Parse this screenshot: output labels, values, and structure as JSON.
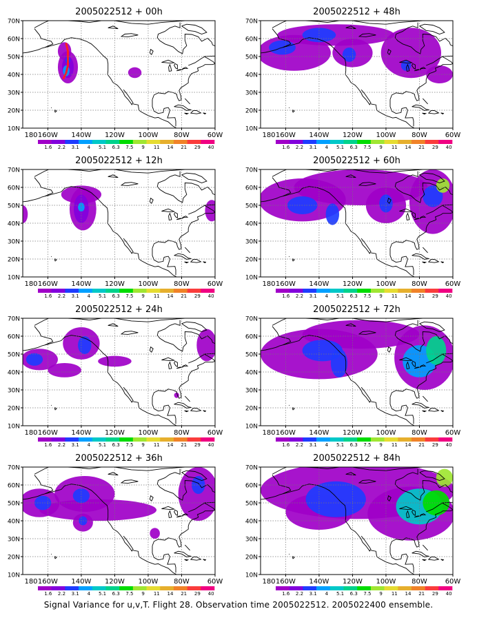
{
  "figure": {
    "caption": "Signal Variance for u,v,T. Flight 28. Observation time 2005022512. 2005022400 ensemble."
  },
  "axes": {
    "x_ticks": [
      "180",
      "160W",
      "140W",
      "120W",
      "100W",
      "80W",
      "60W"
    ],
    "y_ticks": [
      "10N",
      "20N",
      "30N",
      "40N",
      "50N",
      "60N",
      "70N"
    ],
    "lon_range": [
      -175,
      -60
    ],
    "lat_range": [
      10,
      70
    ]
  },
  "colorbar": {
    "labels": [
      "1.6",
      "2.2",
      "3.1",
      "4",
      "5.1",
      "6.3",
      "7.5",
      "9",
      "11",
      "14",
      "21",
      "29",
      "40"
    ],
    "colors": [
      "#a000c8",
      "#8200dc",
      "#1e3cff",
      "#00a0ff",
      "#00c8c8",
      "#00d28c",
      "#00dc00",
      "#a0e632",
      "#e6dc32",
      "#e6af2d",
      "#f08228",
      "#fa3c3c",
      "#f00082"
    ]
  },
  "panels": [
    {
      "title": "2005022512 + 00h",
      "blobs": [
        {
          "lon": -148,
          "lat": 44,
          "rx": 6,
          "ry": 9,
          "level": 0
        },
        {
          "lon": -150,
          "lat": 53,
          "rx": 4,
          "ry": 5,
          "level": 0
        },
        {
          "lon": -148,
          "lat": 44,
          "rx": 3.5,
          "ry": 6,
          "level": 1
        },
        {
          "lon": -149,
          "lat": 42,
          "rx": 2,
          "ry": 3,
          "level": 3
        },
        {
          "lon": -148,
          "lat": 48,
          "rx": 1.5,
          "ry": 2,
          "level": 2
        },
        {
          "lon": -108,
          "lat": 41,
          "rx": 4,
          "ry": 3,
          "level": 0
        }
      ],
      "track": [
        [
          -149,
          57
        ],
        [
          -148,
          53
        ],
        [
          -148,
          49
        ],
        [
          -148,
          45
        ],
        [
          -149,
          41
        ],
        [
          -151,
          37
        ]
      ]
    },
    {
      "title": "2005022512 + 48h",
      "blobs": [
        {
          "lon": -155,
          "lat": 52,
          "rx": 22,
          "ry": 10,
          "level": 0
        },
        {
          "lon": -130,
          "lat": 62,
          "rx": 35,
          "ry": 6,
          "level": 0
        },
        {
          "lon": -120,
          "lat": 52,
          "rx": 12,
          "ry": 8,
          "level": 0
        },
        {
          "lon": -85,
          "lat": 52,
          "rx": 18,
          "ry": 14,
          "level": 0
        },
        {
          "lon": -68,
          "lat": 40,
          "rx": 8,
          "ry": 5,
          "level": 0
        },
        {
          "lon": -162,
          "lat": 55,
          "rx": 8,
          "ry": 4,
          "level": 2
        },
        {
          "lon": -140,
          "lat": 62,
          "rx": 10,
          "ry": 4,
          "level": 2
        },
        {
          "lon": -122,
          "lat": 51,
          "rx": 4,
          "ry": 4,
          "level": 2
        },
        {
          "lon": -88,
          "lat": 45,
          "rx": 3,
          "ry": 3,
          "level": 2
        }
      ]
    },
    {
      "title": "2005022512 + 12h",
      "blobs": [
        {
          "lon": -139,
          "lat": 48,
          "rx": 8,
          "ry": 12,
          "level": 0
        },
        {
          "lon": -140,
          "lat": 56,
          "rx": 12,
          "ry": 5,
          "level": 0
        },
        {
          "lon": -140,
          "lat": 48,
          "rx": 4.5,
          "ry": 8,
          "level": 1
        },
        {
          "lon": -140,
          "lat": 49,
          "rx": 2,
          "ry": 2.5,
          "level": 3
        },
        {
          "lon": -175,
          "lat": 45,
          "rx": 3,
          "ry": 5,
          "level": 0
        },
        {
          "lon": -62,
          "lat": 47,
          "rx": 4,
          "ry": 6,
          "level": 0
        }
      ]
    },
    {
      "title": "2005022512 + 60h",
      "blobs": [
        {
          "lon": -150,
          "lat": 53,
          "rx": 26,
          "ry": 12,
          "level": 0
        },
        {
          "lon": -115,
          "lat": 60,
          "rx": 40,
          "ry": 10,
          "level": 0
        },
        {
          "lon": -100,
          "lat": 50,
          "rx": 12,
          "ry": 10,
          "level": 0
        },
        {
          "lon": -72,
          "lat": 52,
          "rx": 14,
          "ry": 18,
          "level": 0
        },
        {
          "lon": -150,
          "lat": 50,
          "rx": 9,
          "ry": 5,
          "level": 2
        },
        {
          "lon": -132,
          "lat": 45,
          "rx": 4,
          "ry": 6,
          "level": 2
        },
        {
          "lon": -100,
          "lat": 51,
          "rx": 4,
          "ry": 5,
          "level": 2
        },
        {
          "lon": -72,
          "lat": 55,
          "rx": 6,
          "ry": 6,
          "level": 2
        },
        {
          "lon": -66,
          "lat": 61,
          "rx": 4,
          "ry": 4,
          "level": 7
        }
      ]
    },
    {
      "title": "2005022512 + 24h",
      "blobs": [
        {
          "lon": -165,
          "lat": 47,
          "rx": 11,
          "ry": 6,
          "level": 0
        },
        {
          "lon": -140,
          "lat": 56,
          "rx": 11,
          "ry": 9,
          "level": 0
        },
        {
          "lon": -150,
          "lat": 41,
          "rx": 10,
          "ry": 4,
          "level": 0
        },
        {
          "lon": -120,
          "lat": 46,
          "rx": 10,
          "ry": 3,
          "level": 0
        },
        {
          "lon": -65,
          "lat": 55,
          "rx": 6,
          "ry": 9,
          "level": 0
        },
        {
          "lon": -168,
          "lat": 47,
          "rx": 5,
          "ry": 3.5,
          "level": 2
        },
        {
          "lon": -138,
          "lat": 55,
          "rx": 4,
          "ry": 5,
          "level": 2
        },
        {
          "lon": -83,
          "lat": 27,
          "rx": 1.5,
          "ry": 1.5,
          "level": 0
        }
      ]
    },
    {
      "title": "2005022512 + 72h",
      "blobs": [
        {
          "lon": -140,
          "lat": 50,
          "rx": 35,
          "ry": 14,
          "level": 0
        },
        {
          "lon": -115,
          "lat": 61,
          "rx": 35,
          "ry": 8,
          "level": 0
        },
        {
          "lon": -77,
          "lat": 48,
          "rx": 18,
          "ry": 18,
          "level": 0
        },
        {
          "lon": -138,
          "lat": 52,
          "rx": 12,
          "ry": 6,
          "level": 2
        },
        {
          "lon": -128,
          "lat": 45,
          "rx": 5,
          "ry": 8,
          "level": 2
        },
        {
          "lon": -80,
          "lat": 46,
          "rx": 10,
          "ry": 9,
          "level": 3
        },
        {
          "lon": -70,
          "lat": 52,
          "rx": 6,
          "ry": 8,
          "level": 5
        }
      ]
    },
    {
      "title": "2005022512 + 36h",
      "blobs": [
        {
          "lon": -165,
          "lat": 50,
          "rx": 12,
          "ry": 8,
          "level": 0
        },
        {
          "lon": -138,
          "lat": 55,
          "rx": 18,
          "ry": 10,
          "level": 0
        },
        {
          "lon": -130,
          "lat": 46,
          "rx": 35,
          "ry": 6,
          "level": 0
        },
        {
          "lon": -139,
          "lat": 39,
          "rx": 6,
          "ry": 5,
          "level": 0
        },
        {
          "lon": -70,
          "lat": 55,
          "rx": 12,
          "ry": 15,
          "level": 0
        },
        {
          "lon": -96,
          "lat": 33,
          "rx": 3,
          "ry": 3,
          "level": 0
        },
        {
          "lon": -163,
          "lat": 50,
          "rx": 5,
          "ry": 4,
          "level": 2
        },
        {
          "lon": -140,
          "lat": 54,
          "rx": 5,
          "ry": 4,
          "level": 2
        },
        {
          "lon": -139,
          "lat": 40,
          "rx": 2.5,
          "ry": 2.5,
          "level": 2
        },
        {
          "lon": -70,
          "lat": 60,
          "rx": 4,
          "ry": 5,
          "level": 2
        }
      ]
    },
    {
      "title": "2005022512 + 84h",
      "blobs": [
        {
          "lon": -117,
          "lat": 57,
          "rx": 58,
          "ry": 16,
          "level": 0
        },
        {
          "lon": -85,
          "lat": 44,
          "rx": 26,
          "ry": 15,
          "level": 0
        },
        {
          "lon": -140,
          "lat": 45,
          "rx": 20,
          "ry": 10,
          "level": 0
        },
        {
          "lon": -130,
          "lat": 52,
          "rx": 18,
          "ry": 10,
          "level": 2
        },
        {
          "lon": -80,
          "lat": 48,
          "rx": 14,
          "ry": 10,
          "level": 4
        },
        {
          "lon": -70,
          "lat": 50,
          "rx": 8,
          "ry": 7,
          "level": 6
        },
        {
          "lon": -65,
          "lat": 64,
          "rx": 5,
          "ry": 5,
          "level": 7
        }
      ]
    }
  ]
}
